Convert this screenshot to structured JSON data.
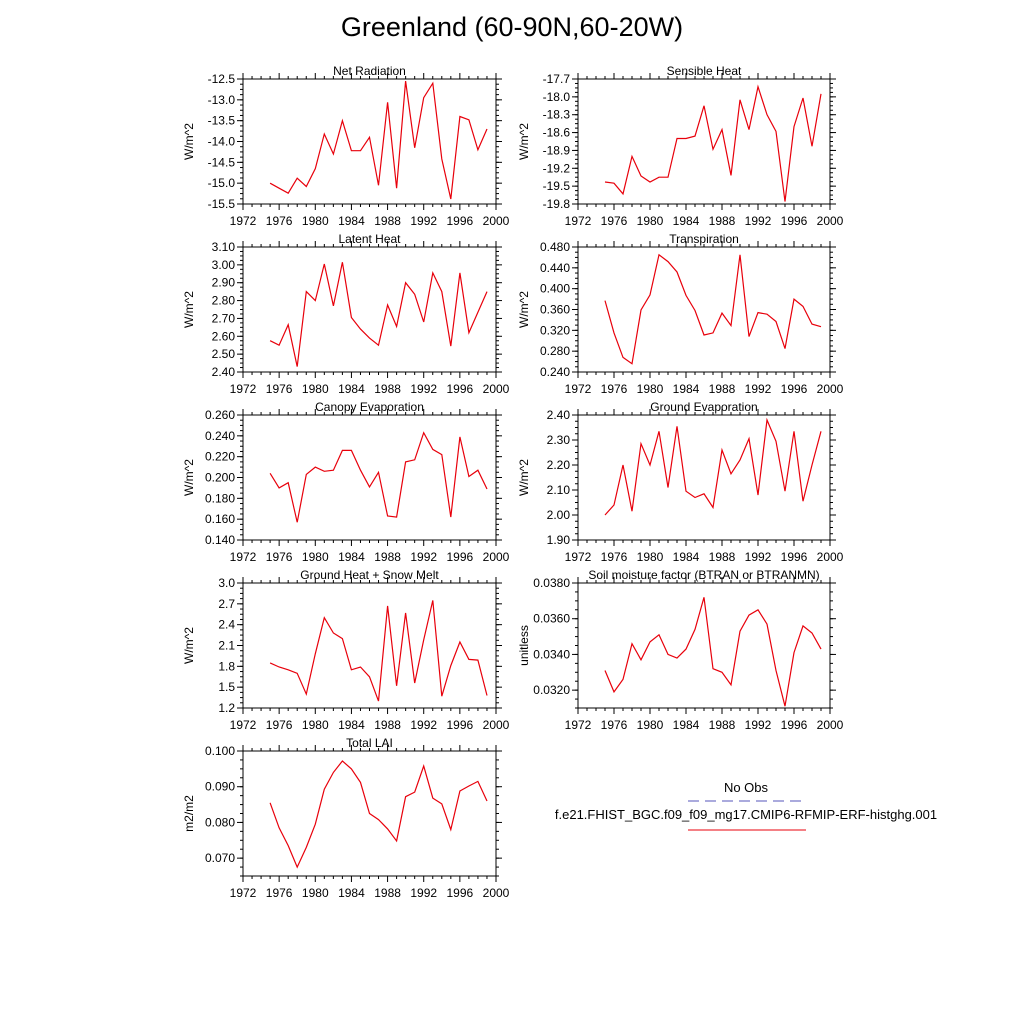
{
  "page": {
    "title": "Greenland (60-90N,60-20W)"
  },
  "chart_data": [
    {
      "type": "line",
      "id": "net-radiation",
      "title": "Net Radiation",
      "ylabel": "W/m^2",
      "xlim": [
        1972,
        2000
      ],
      "ylim": [
        -15.5,
        -12.5
      ],
      "xticks": [
        "1972",
        "1976",
        "1980",
        "1984",
        "1988",
        "1992",
        "1996",
        "2000"
      ],
      "yticks": [
        "-12.5",
        "-13.0",
        "-13.5",
        "-14.0",
        "-14.5",
        "-15.0",
        "-15.5"
      ],
      "line_color": "#e8000b",
      "x": [
        1975,
        1976,
        1977,
        1978,
        1979,
        1980,
        1981,
        1982,
        1983,
        1984,
        1985,
        1986,
        1987,
        1988,
        1989,
        1990,
        1991,
        1992,
        1993,
        1994,
        1995,
        1996,
        1997,
        1998,
        1999
      ],
      "y": [
        -15.0,
        -15.12,
        -15.24,
        -14.88,
        -15.08,
        -14.65,
        -13.82,
        -14.3,
        -13.5,
        -14.22,
        -14.22,
        -13.9,
        -15.05,
        -13.06,
        -15.12,
        -12.55,
        -14.15,
        -12.95,
        -12.6,
        -14.42,
        -15.38,
        -13.4,
        -13.48,
        -14.2,
        -13.7
      ]
    },
    {
      "type": "line",
      "id": "sensible-heat",
      "title": "Sensible Heat",
      "ylabel": "W/m^2",
      "xlim": [
        1972,
        2000
      ],
      "ylim": [
        -19.8,
        -17.7
      ],
      "xticks": [
        "1972",
        "1976",
        "1980",
        "1984",
        "1988",
        "1992",
        "1996",
        "2000"
      ],
      "yticks": [
        "-17.7",
        "-18.0",
        "-18.3",
        "-18.6",
        "-18.9",
        "-19.2",
        "-19.5",
        "-19.8"
      ],
      "line_color": "#e8000b",
      "x": [
        1975,
        1976,
        1977,
        1978,
        1979,
        1980,
        1981,
        1982,
        1983,
        1984,
        1985,
        1986,
        1987,
        1988,
        1989,
        1990,
        1991,
        1992,
        1993,
        1994,
        1995,
        1996,
        1997,
        1998,
        1999
      ],
      "y": [
        -19.43,
        -19.45,
        -19.63,
        -19.0,
        -19.33,
        -19.43,
        -19.35,
        -19.35,
        -18.7,
        -18.7,
        -18.66,
        -18.15,
        -18.88,
        -18.55,
        -19.32,
        -18.05,
        -18.55,
        -17.83,
        -18.3,
        -18.58,
        -19.76,
        -18.5,
        -18.02,
        -18.83,
        -17.95
      ]
    },
    {
      "type": "line",
      "id": "latent-heat",
      "title": "Latent Heat",
      "ylabel": "W/m^2",
      "xlim": [
        1972,
        2000
      ],
      "ylim": [
        2.4,
        3.1
      ],
      "xticks": [
        "1972",
        "1976",
        "1980",
        "1984",
        "1988",
        "1992",
        "1996",
        "2000"
      ],
      "yticks": [
        "3.10",
        "3.00",
        "2.90",
        "2.80",
        "2.70",
        "2.60",
        "2.50",
        "2.40"
      ],
      "line_color": "#e8000b",
      "x": [
        1975,
        1976,
        1977,
        1978,
        1979,
        1980,
        1981,
        1982,
        1983,
        1984,
        1985,
        1986,
        1987,
        1988,
        1989,
        1990,
        1991,
        1992,
        1993,
        1994,
        1995,
        1996,
        1997,
        1998,
        1999
      ],
      "y": [
        2.575,
        2.55,
        2.665,
        2.43,
        2.85,
        2.8,
        3.005,
        2.77,
        3.015,
        2.705,
        2.64,
        2.59,
        2.55,
        2.775,
        2.655,
        2.9,
        2.835,
        2.68,
        2.955,
        2.85,
        2.545,
        2.955,
        2.62,
        2.735,
        2.85
      ]
    },
    {
      "type": "line",
      "id": "transpiration",
      "title": "Transpiration",
      "ylabel": "W/m^2",
      "xlim": [
        1972,
        2000
      ],
      "ylim": [
        0.24,
        0.48
      ],
      "xticks": [
        "1972",
        "1976",
        "1980",
        "1984",
        "1988",
        "1992",
        "1996",
        "2000"
      ],
      "yticks": [
        "0.480",
        "0.440",
        "0.400",
        "0.360",
        "0.320",
        "0.280",
        "0.240"
      ],
      "line_color": "#e8000b",
      "x": [
        1975,
        1976,
        1977,
        1978,
        1979,
        1980,
        1981,
        1982,
        1983,
        1984,
        1985,
        1986,
        1987,
        1988,
        1989,
        1990,
        1991,
        1992,
        1993,
        1994,
        1995,
        1996,
        1997,
        1998,
        1999
      ],
      "y": [
        0.377,
        0.315,
        0.268,
        0.256,
        0.359,
        0.388,
        0.465,
        0.452,
        0.432,
        0.387,
        0.358,
        0.311,
        0.315,
        0.353,
        0.329,
        0.465,
        0.308,
        0.354,
        0.351,
        0.337,
        0.285,
        0.38,
        0.366,
        0.332,
        0.327
      ]
    },
    {
      "type": "line",
      "id": "canopy-evaporation",
      "title": "Canopy Evaporation",
      "ylabel": "W/m^2",
      "xlim": [
        1972,
        2000
      ],
      "ylim": [
        0.14,
        0.26
      ],
      "xticks": [
        "1972",
        "1976",
        "1980",
        "1984",
        "1988",
        "1992",
        "1996",
        "2000"
      ],
      "yticks": [
        "0.260",
        "0.240",
        "0.220",
        "0.200",
        "0.180",
        "0.160",
        "0.140"
      ],
      "line_color": "#e8000b",
      "x": [
        1975,
        1976,
        1977,
        1978,
        1979,
        1980,
        1981,
        1982,
        1983,
        1984,
        1985,
        1986,
        1987,
        1988,
        1989,
        1990,
        1991,
        1992,
        1993,
        1994,
        1995,
        1996,
        1997,
        1998,
        1999
      ],
      "y": [
        0.204,
        0.19,
        0.195,
        0.157,
        0.203,
        0.21,
        0.206,
        0.207,
        0.226,
        0.226,
        0.207,
        0.191,
        0.205,
        0.163,
        0.162,
        0.215,
        0.217,
        0.243,
        0.227,
        0.222,
        0.162,
        0.239,
        0.201,
        0.207,
        0.189
      ]
    },
    {
      "type": "line",
      "id": "ground-evaporation",
      "title": "Ground Evaporation",
      "ylabel": "W/m^2",
      "xlim": [
        1972,
        2000
      ],
      "ylim": [
        1.9,
        2.4
      ],
      "xticks": [
        "1972",
        "1976",
        "1980",
        "1984",
        "1988",
        "1992",
        "1996",
        "2000"
      ],
      "yticks": [
        "2.40",
        "2.30",
        "2.20",
        "2.10",
        "2.00",
        "1.90"
      ],
      "line_color": "#e8000b",
      "x": [
        1975,
        1976,
        1977,
        1978,
        1979,
        1980,
        1981,
        1982,
        1983,
        1984,
        1985,
        1986,
        1987,
        1988,
        1989,
        1990,
        1991,
        1992,
        1993,
        1994,
        1995,
        1996,
        1997,
        1998,
        1999
      ],
      "y": [
        2.0,
        2.04,
        2.2,
        2.015,
        2.285,
        2.2,
        2.335,
        2.11,
        2.355,
        2.095,
        2.07,
        2.085,
        2.03,
        2.26,
        2.165,
        2.22,
        2.305,
        2.08,
        2.38,
        2.295,
        2.095,
        2.335,
        2.055,
        2.2,
        2.335
      ]
    },
    {
      "type": "line",
      "id": "ground-heat-snow-melt",
      "title": "Ground Heat + Snow Melt",
      "ylabel": "W/m^2",
      "xlim": [
        1972,
        2000
      ],
      "ylim": [
        1.2,
        3.0
      ],
      "xticks": [
        "1972",
        "1976",
        "1980",
        "1984",
        "1988",
        "1992",
        "1996",
        "2000"
      ],
      "yticks": [
        "3.0",
        "2.7",
        "2.4",
        "2.1",
        "1.8",
        "1.5",
        "1.2"
      ],
      "line_color": "#e8000b",
      "x": [
        1975,
        1976,
        1977,
        1978,
        1979,
        1980,
        1981,
        1982,
        1983,
        1984,
        1985,
        1986,
        1987,
        1988,
        1989,
        1990,
        1991,
        1992,
        1993,
        1994,
        1995,
        1996,
        1997,
        1998,
        1999
      ],
      "y": [
        1.85,
        1.79,
        1.75,
        1.7,
        1.4,
        1.98,
        2.5,
        2.28,
        2.2,
        1.75,
        1.79,
        1.65,
        1.3,
        2.67,
        1.52,
        2.57,
        1.56,
        2.18,
        2.75,
        1.37,
        1.81,
        2.15,
        1.9,
        1.89,
        1.38
      ]
    },
    {
      "type": "line",
      "id": "soil-moisture-factor",
      "title": "Soil moisture factor (BTRAN or BTRANMN)",
      "ylabel": "unitless",
      "xlim": [
        1972,
        2000
      ],
      "ylim": [
        0.031,
        0.038
      ],
      "xticks": [
        "1972",
        "1976",
        "1980",
        "1984",
        "1988",
        "1992",
        "1996",
        "2000"
      ],
      "yticks": [
        "0.0380",
        "0.0360",
        "0.0340",
        "0.0320"
      ],
      "line_color": "#e8000b",
      "x": [
        1975,
        1976,
        1977,
        1978,
        1979,
        1980,
        1981,
        1982,
        1983,
        1984,
        1985,
        1986,
        1987,
        1988,
        1989,
        1990,
        1991,
        1992,
        1993,
        1994,
        1995,
        1996,
        1997,
        1998,
        1999
      ],
      "y": [
        0.0331,
        0.0319,
        0.0326,
        0.0346,
        0.0337,
        0.0347,
        0.0351,
        0.034,
        0.0338,
        0.0343,
        0.0354,
        0.0372,
        0.0332,
        0.033,
        0.0323,
        0.0353,
        0.0362,
        0.0365,
        0.0357,
        0.0331,
        0.0311,
        0.0341,
        0.0356,
        0.0352,
        0.0343
      ]
    },
    {
      "type": "line",
      "id": "total-lai",
      "title": "Total LAI",
      "ylabel": "m2/m2",
      "xlim": [
        1972,
        2000
      ],
      "ylim": [
        0.065,
        0.1
      ],
      "xticks": [
        "1972",
        "1976",
        "1980",
        "1984",
        "1988",
        "1992",
        "1996",
        "2000"
      ],
      "yticks": [
        "0.100",
        "0.090",
        "0.080",
        "0.070"
      ],
      "line_color": "#e8000b",
      "x": [
        1975,
        1976,
        1977,
        1978,
        1979,
        1980,
        1981,
        1982,
        1983,
        1984,
        1985,
        1986,
        1987,
        1988,
        1989,
        1990,
        1991,
        1992,
        1993,
        1994,
        1995,
        1996,
        1997,
        1998,
        1999
      ],
      "y": [
        0.0855,
        0.0785,
        0.0735,
        0.0675,
        0.073,
        0.0795,
        0.0893,
        0.094,
        0.0972,
        0.095,
        0.0912,
        0.0825,
        0.0808,
        0.0782,
        0.0748,
        0.0872,
        0.0885,
        0.0958,
        0.0868,
        0.0852,
        0.078,
        0.0888,
        0.0902,
        0.0915,
        0.086
      ]
    }
  ],
  "legend": {
    "items": [
      {
        "label": "No Obs",
        "color": "#5555bb",
        "style": "dashed"
      },
      {
        "label": "f.e21.FHIST_BGC.f09_f09_mg17.CMIP6-RFMIP-ERF-histghg.001",
        "color": "#e8000b",
        "style": "solid"
      }
    ]
  }
}
